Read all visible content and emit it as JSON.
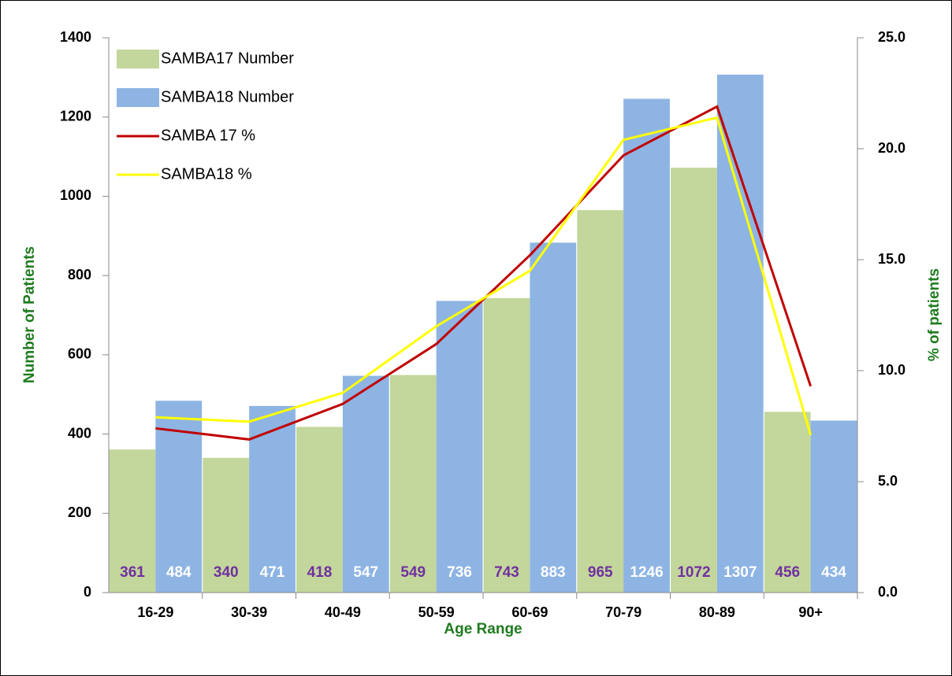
{
  "chart_data": {
    "type": "bar",
    "x_label": "Age Range",
    "y_label": "Number of Patients",
    "y2_label": "% of patients",
    "categories": [
      "16-29",
      "30-39",
      "40-49",
      "50-59",
      "60-69",
      "70-79",
      "80-89",
      "90+"
    ],
    "series": [
      {
        "name": "SAMBA17 Number",
        "type": "bar",
        "color": "#c3d69b",
        "label_color": "#7030a0",
        "values": [
          361,
          340,
          418,
          549,
          743,
          965,
          1072,
          456
        ]
      },
      {
        "name": "SAMBA18 Number",
        "type": "bar",
        "color": "#8eb4e3",
        "label_color": "#ffffff",
        "values": [
          484,
          471,
          547,
          736,
          883,
          1246,
          1307,
          434
        ]
      },
      {
        "name": "SAMBA 17 %",
        "type": "line",
        "axis": "y2",
        "color": "#c00000",
        "values": [
          7.4,
          6.9,
          8.5,
          11.2,
          15.2,
          19.7,
          21.9,
          9.3
        ]
      },
      {
        "name": "SAMBA18 %",
        "type": "line",
        "axis": "y2",
        "color": "#ffff00",
        "values": [
          7.9,
          7.7,
          9.0,
          12.0,
          14.5,
          20.4,
          21.4,
          7.1
        ]
      }
    ],
    "ylim": [
      0,
      1400
    ],
    "yticks": [
      0,
      200,
      400,
      600,
      800,
      1000,
      1200,
      1400
    ],
    "y2lim": [
      0,
      25
    ],
    "y2ticks": [
      {
        "value": 0,
        "label": "0.0"
      },
      {
        "value": 5,
        "label": "5.0"
      },
      {
        "value": 10,
        "label": "10.0"
      },
      {
        "value": 15,
        "label": "15.0"
      },
      {
        "value": 20,
        "label": "20.0"
      },
      {
        "value": 25,
        "label": "25.0"
      }
    ],
    "legend": "top-left",
    "grid": false
  }
}
